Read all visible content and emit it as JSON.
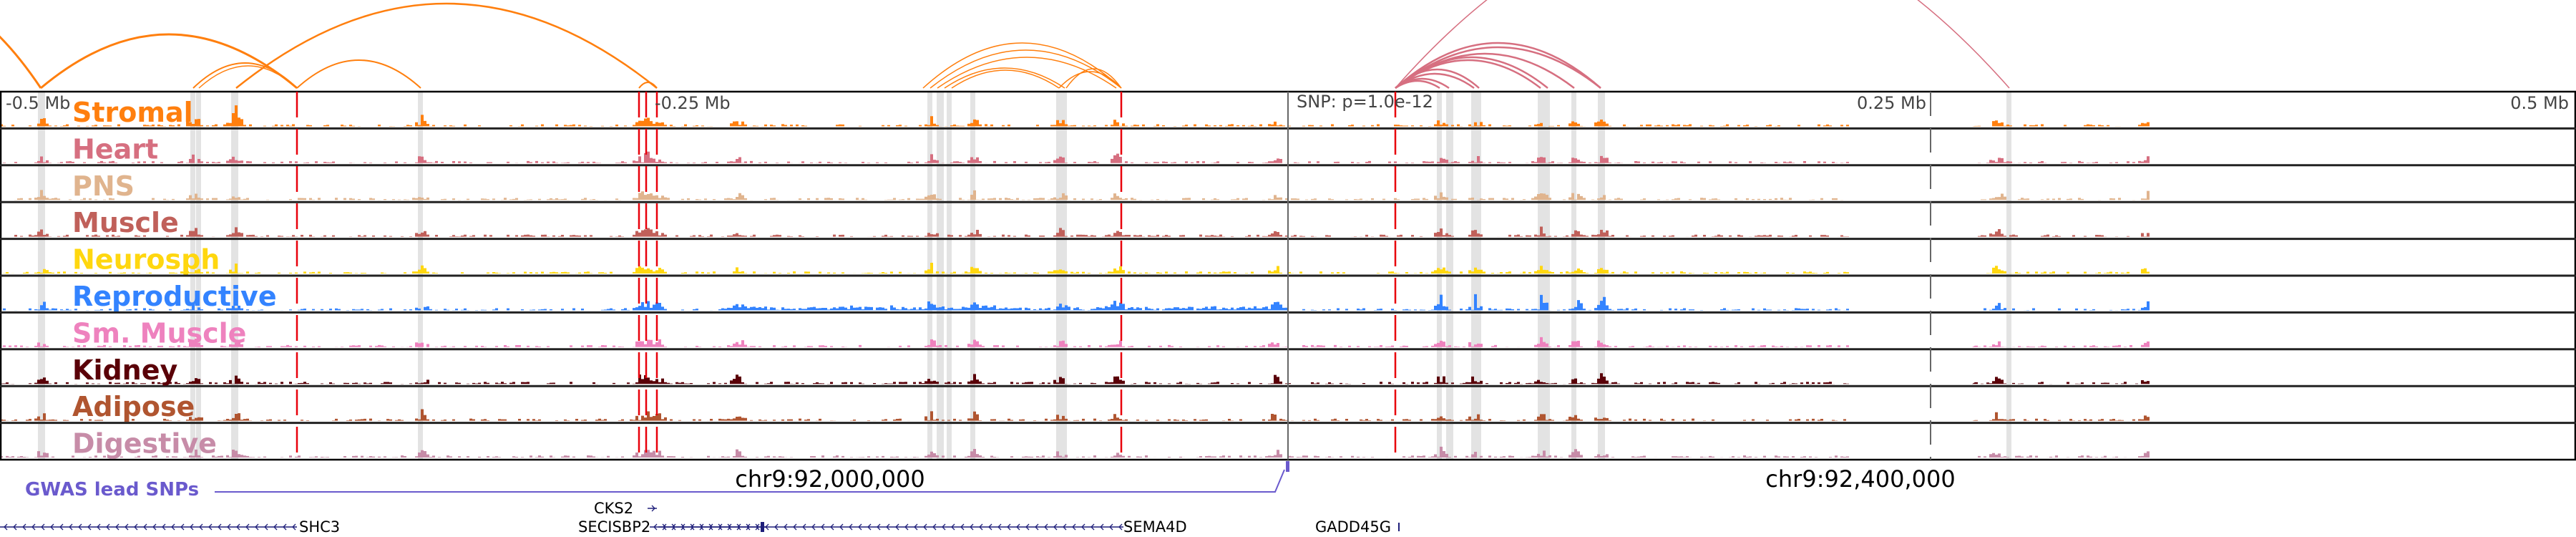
{
  "axis": {
    "ticks": [
      {
        "label": "-0.5 Mb",
        "offset_mb": -0.5
      },
      {
        "label": "-0.25 Mb",
        "offset_mb": -0.25
      },
      {
        "label": "0.25 Mb",
        "offset_mb": 0.25
      },
      {
        "label": "0.5 Mb",
        "offset_mb": 0.5
      }
    ],
    "snp_label": "SNP: p=1.0e-12"
  },
  "tracks": [
    {
      "name": "Stromal",
      "color": "#ff7f0e"
    },
    {
      "name": "Heart",
      "color": "#d66f80"
    },
    {
      "name": "PNS",
      "color": "#e0b48e"
    },
    {
      "name": "Muscle",
      "color": "#c0605a"
    },
    {
      "name": "Neurosph",
      "color": "#ffd70f"
    },
    {
      "name": "Reproductive",
      "color": "#3383ff"
    },
    {
      "name": "Sm. Muscle",
      "color": "#ee82be"
    },
    {
      "name": "Kidney",
      "color": "#5a0008"
    },
    {
      "name": "Adipose",
      "color": "#b05530"
    },
    {
      "name": "Digestive",
      "color": "#c78ca8"
    }
  ],
  "coordinates": [
    "chr9:92,000,000",
    "chr9:92,400,000"
  ],
  "gwas": {
    "label": "GWAS lead SNPs",
    "color": "#6a5acd"
  },
  "genes": [
    {
      "name": "SHC3",
      "strand": "-"
    },
    {
      "name": "CKS2",
      "strand": "+"
    },
    {
      "name": "SECISBP2",
      "strand": "+"
    },
    {
      "name": "SEMA4D",
      "strand": "-"
    },
    {
      "name": "GADD45G",
      "strand": "+"
    }
  ],
  "colors": {
    "red_marker": "#e8000b",
    "highlight": "#e3e3e3",
    "gene": "#1f1f7a"
  }
}
